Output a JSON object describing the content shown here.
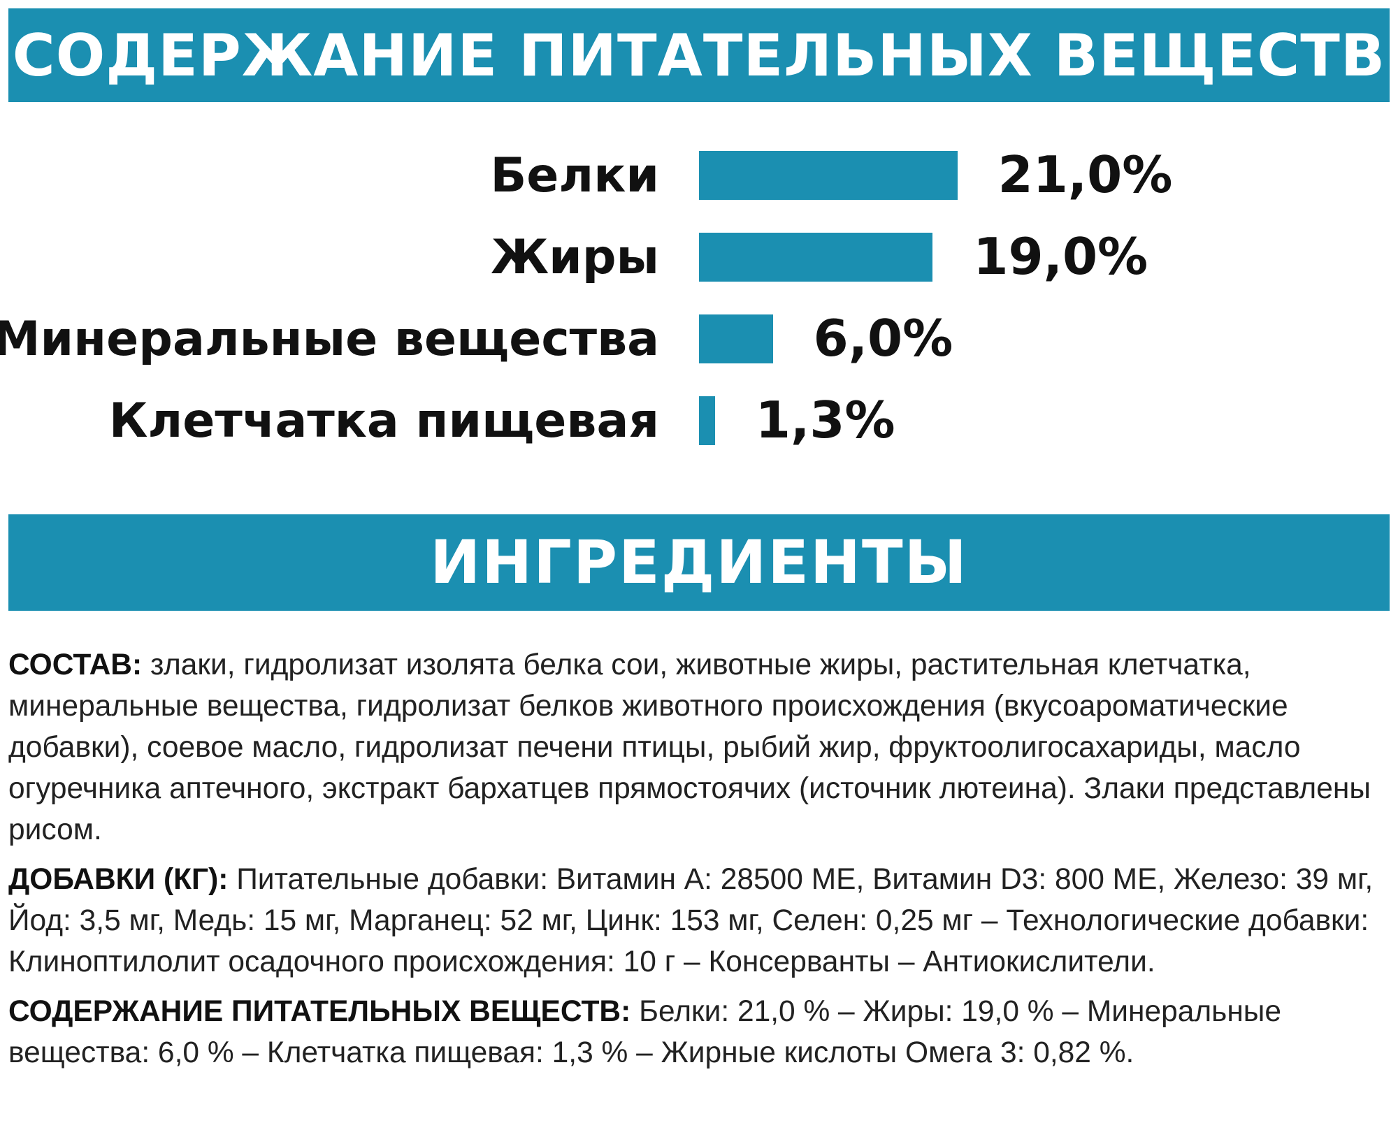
{
  "header": {
    "title": "СОДЕРЖАНИЕ ПИТАТЕЛЬНЫХ ВЕЩЕСТВ"
  },
  "accent_color": "#1b8fb1",
  "chart_data": {
    "type": "bar",
    "orientation": "horizontal",
    "categories": [
      "Белки",
      "Жиры",
      "Минеральные вещества",
      "Клетчатка пищевая"
    ],
    "values": [
      21.0,
      19.0,
      6.0,
      1.3
    ],
    "value_labels": [
      "21,0%",
      "19,0%",
      "6,0%",
      "1,3%"
    ],
    "bar_color": "#1b8fb1"
  },
  "ingredients_header": {
    "title": "ИНГРЕДИЕНТЫ"
  },
  "paragraphs": [
    {
      "label": "СОСТАВ:",
      "text": " злаки, гидролизат изолята белка сои, животные жиры, растительная клетчатка, минеральные вещества, гидролизат белков животного происхождения (вкусоароматические добавки), соевое масло, гидролизат печени птицы, рыбий жир, фруктоолигосахариды, масло огуречника аптечного, экстракт бархатцев прямостоячих (источник лютеина). Злаки представлены рисом."
    },
    {
      "label": "ДОБАВКИ (КГ):",
      "text": " Питательные добавки: Витамин А: 28500 МЕ, Витамин D3: 800 МЕ, Железо: 39 мг, Йод: 3,5 мг, Медь: 15 мг, Марганец: 52 мг, Цинк: 153 мг, Селен: 0,25 мг – Технологические добавки: Клиноптилолит осадочного происхождения: 10 г – Консерванты – Антиокислители."
    },
    {
      "label": "СОДЕРЖАНИЕ ПИТАТЕЛЬНЫХ ВЕЩЕСТВ:",
      "text": " Белки: 21,0 % – Жиры: 19,0 % – Минеральные вещества: 6,0 % – Клетчатка пищевая: 1,3 % – Жирные кислоты Омега 3: 0,82 %."
    }
  ]
}
